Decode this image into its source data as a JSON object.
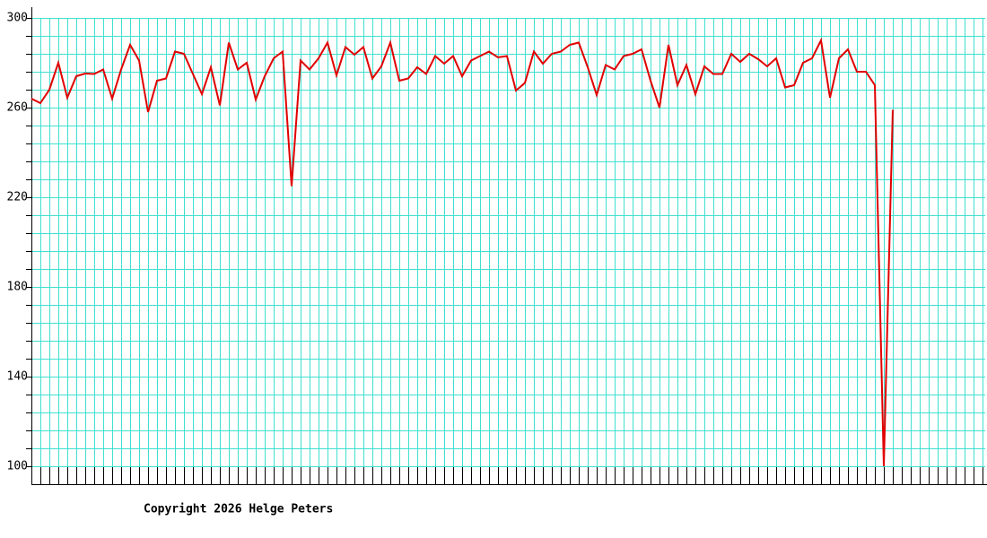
{
  "chart_data": {
    "type": "line",
    "footer": "Copyright 2026 Helge Peters",
    "values": [
      264,
      262,
      268,
      280,
      264.4,
      274,
      275.2,
      275,
      277,
      264,
      277,
      288,
      281,
      258,
      272,
      273,
      285,
      284,
      275,
      266,
      278,
      261,
      289,
      277,
      280,
      263.6,
      274,
      282,
      285,
      225,
      281,
      277,
      282,
      289,
      274.4,
      287,
      283.6,
      287,
      273,
      278.4,
      289,
      272,
      273,
      278,
      275,
      283,
      279.6,
      283,
      274,
      281,
      283,
      285,
      282.4,
      283,
      267.6,
      271,
      285,
      279.6,
      284,
      285,
      288,
      289,
      278,
      265.6,
      279,
      277,
      283,
      284,
      286,
      272,
      260,
      288,
      270,
      279,
      266,
      278.4,
      275,
      275,
      284,
      280.4,
      284,
      281.6,
      278.4,
      282,
      269,
      270,
      280,
      282,
      290,
      264.4,
      282,
      286,
      276,
      276,
      270,
      100,
      259
    ],
    "color": "#e00000",
    "ylim": [
      92,
      300
    ],
    "yticks": [
      100,
      140,
      180,
      220,
      260,
      300
    ],
    "grid": true
  }
}
